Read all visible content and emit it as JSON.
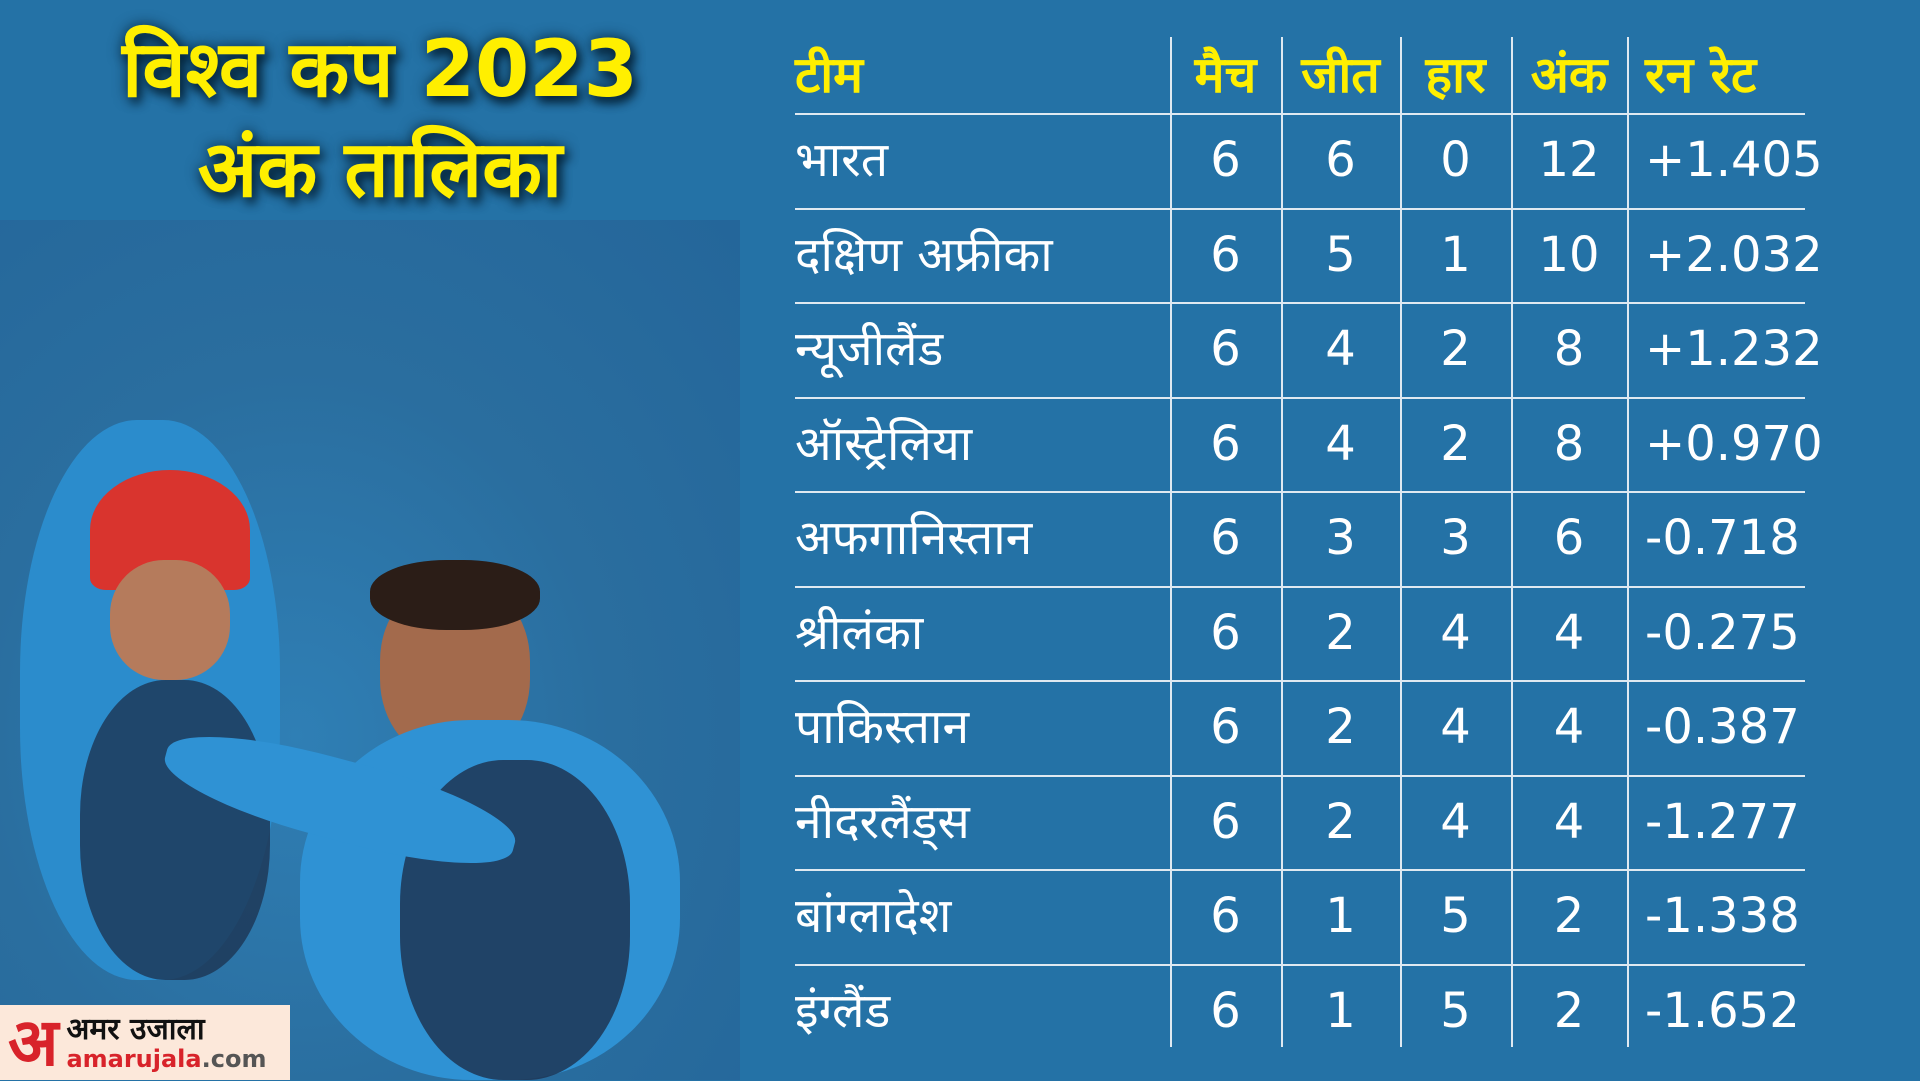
{
  "title": {
    "line1": "विश्व कप 2023",
    "line2": "अंक तालिका"
  },
  "table": {
    "headers": [
      "टीम",
      "मैच",
      "जीत",
      "हार",
      "अंक",
      "रन रेट"
    ],
    "rows": [
      [
        "भारत",
        "6",
        "6",
        "0",
        "12",
        "+1.405"
      ],
      [
        "दक्षिण अफ्रीका",
        "6",
        "5",
        "1",
        "10",
        "+2.032"
      ],
      [
        "न्यूजीलैंड",
        "6",
        "4",
        "2",
        "8",
        "+1.232"
      ],
      [
        "ऑस्ट्रेलिया",
        "6",
        "4",
        "2",
        "8",
        "+0.970"
      ],
      [
        "अफगानिस्तान",
        "6",
        "3",
        "3",
        "6",
        "-0.718"
      ],
      [
        "श्रीलंका",
        "6",
        "2",
        "4",
        "4",
        "-0.275"
      ],
      [
        "पाकिस्तान",
        "6",
        "2",
        "4",
        "4",
        "-0.387"
      ],
      [
        "नीदरलैंड्स",
        "6",
        "2",
        "4",
        "4",
        "-1.277"
      ],
      [
        "बांग्लादेश",
        "6",
        "1",
        "5",
        "2",
        "-1.338"
      ],
      [
        "इंग्लैंड",
        "6",
        "1",
        "5",
        "2",
        "-1.652"
      ]
    ]
  },
  "logo": {
    "mark": "अ",
    "hindi": "अमर उजाला",
    "domain_name": "amarujala",
    "domain_tld": ".com"
  },
  "colors": {
    "background": "#2472a6",
    "header_text": "#ffef00",
    "cell_text": "#ffffff",
    "logo_red": "#d8232a"
  }
}
